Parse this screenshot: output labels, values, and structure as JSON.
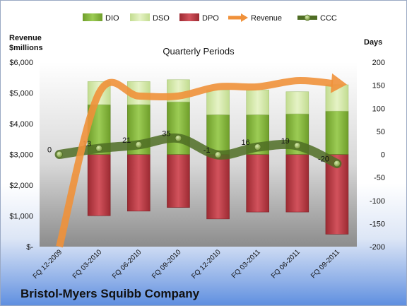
{
  "chart_data": {
    "type": "bar",
    "title": "Quarterly Periods",
    "company": "Bristol-Myers Squibb Company",
    "y_left_label_line1": "Revenue",
    "y_left_label_line2": "$millions",
    "y_right_label": "Days",
    "y_left_ticks": [
      "$-",
      "$1,000",
      "$2,000",
      "$3,000",
      "$4,000",
      "$5,000",
      "$6,000"
    ],
    "y_right_ticks": [
      "-200",
      "-150",
      "-100",
      "-50",
      "0",
      "50",
      "100",
      "150",
      "200"
    ],
    "y_left_lim": [
      0,
      6000
    ],
    "y_right_lim": [
      -200,
      200
    ],
    "categories": [
      "FQ 12-2009",
      "FQ 03-2010",
      "FQ 06-2010",
      "FQ 09-2010",
      "FQ 12-2010",
      "FQ 03-2011",
      "FQ 06-2011",
      "FQ 09-2011"
    ],
    "legend": {
      "position": "top",
      "items": [
        {
          "name": "DIO",
          "kind": "bar",
          "color": "#8cbf3f"
        },
        {
          "name": "DSO",
          "kind": "bar",
          "color": "#d4e8a8"
        },
        {
          "name": "DPO",
          "kind": "bar",
          "color": "#c0404a"
        },
        {
          "name": "Revenue",
          "kind": "arrow",
          "color": "#f0913a"
        },
        {
          "name": "CCC",
          "kind": "line-marker",
          "color": "#5a7a2a"
        }
      ]
    },
    "series": [
      {
        "name": "DIO",
        "axis": "right",
        "values": [
          null,
          108,
          108,
          114,
          86,
          86,
          88,
          94
        ]
      },
      {
        "name": "DSO",
        "axis": "right",
        "values": [
          null,
          50,
          50,
          48,
          54,
          54,
          48,
          57
        ]
      },
      {
        "name": "DPO",
        "axis": "right",
        "values": [
          null,
          -133,
          -123,
          -115,
          -140,
          -125,
          -125,
          -173
        ]
      },
      {
        "name": "Revenue",
        "axis": "left",
        "values": [
          0,
          5000,
          4900,
          4900,
          5200,
          5200,
          5400,
          5300
        ]
      },
      {
        "name": "CCC",
        "axis": "right",
        "values": [
          0,
          13,
          21,
          35,
          -1,
          16,
          19,
          -20
        ]
      }
    ],
    "ccc_labels": [
      "0",
      "13",
      "21",
      "35",
      "-1",
      "16",
      "19",
      "-20"
    ],
    "grid": false,
    "colors": {
      "plot_top": "#ffffff",
      "plot_bottom": "#9a9a9a",
      "dio": "#8cbf3f",
      "dso": "#d4e8a8",
      "dpo": "#c0404a",
      "revenue": "#f0913a",
      "ccc": "#5a7a2a",
      "ccc_marker": "#9ab860"
    }
  }
}
